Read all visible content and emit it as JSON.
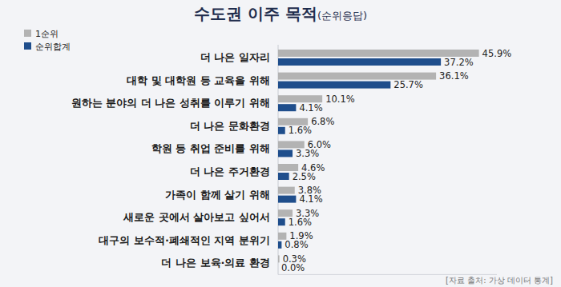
{
  "chart_data": {
    "type": "bar",
    "orientation": "horizontal",
    "title": "수도권 이주 목적",
    "subtitle": "(순위응답)",
    "categories": [
      "더 나은 일자리",
      "대학 및 대학원 등 교육을 위해",
      "원하는 분야의 더 나은 성취를 이루기 위해",
      "더 나은 문화환경",
      "학원 등 취업 준비를 위해",
      "더 나은 주거환경",
      "가족이 함께 살기 위해",
      "새로운 곳에서 살아보고 싶어서",
      "대구의 보수적·폐쇄적인 지역 분위기",
      "더 나은 보육·의료 환경"
    ],
    "series": [
      {
        "name": "1순위",
        "color": "#b3b3b3",
        "values": [
          45.9,
          36.1,
          10.1,
          6.8,
          6.0,
          4.6,
          3.8,
          3.3,
          1.9,
          0.3
        ],
        "value_labels": [
          "45.9%",
          "36.1%",
          "10.1%",
          "6.8%",
          "6.0%",
          "4.6%",
          "3.8%",
          "3.3%",
          "1.9%",
          "0.3%"
        ]
      },
      {
        "name": "순위합계",
        "color": "#1f4e8c",
        "values": [
          37.2,
          25.7,
          4.1,
          1.6,
          3.3,
          2.5,
          4.1,
          1.6,
          0.8,
          0.0
        ],
        "value_labels": [
          "37.2%",
          "25.7%",
          "4.1%",
          "1.6%",
          "3.3%",
          "2.5%",
          "4.1%",
          "1.6%",
          "0.8%",
          "0.0%"
        ]
      }
    ],
    "xlim": [
      0,
      50
    ],
    "data_labels": true,
    "tick_labels": false,
    "grid": false,
    "legend": "top-left",
    "source": "[자료 출처: 가상 데이터 통계]"
  }
}
